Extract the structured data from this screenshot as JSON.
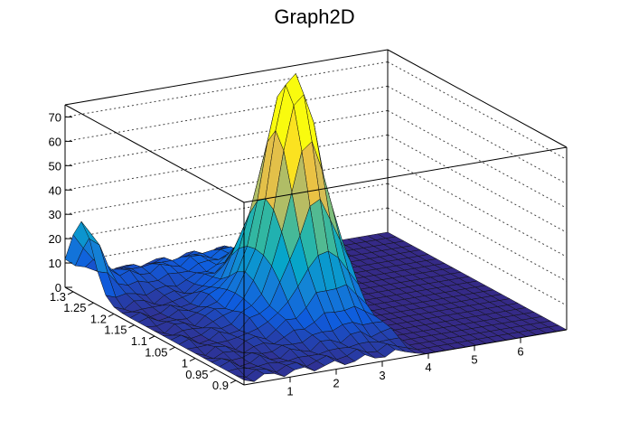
{
  "chart_data": {
    "type": "surface3d",
    "title": "Graph2D",
    "xlabel": "",
    "ylabel": "",
    "zlabel": "",
    "xlim": [
      0,
      7
    ],
    "ylim": [
      0.88,
      1.32
    ],
    "zlim": [
      0,
      75
    ],
    "x_ticks": [
      "1",
      "2",
      "3",
      "4",
      "5",
      "6"
    ],
    "y_ticks": [
      "1.3",
      "1.25",
      "1.2",
      "1.15",
      "1.1",
      "1.05",
      "1",
      "0.95",
      "0.9"
    ],
    "z_ticks": [
      "0",
      "10",
      "20",
      "30",
      "40",
      "50",
      "60",
      "70"
    ],
    "z_gridlines": true,
    "palette": [
      "#352a87",
      "#0f5cdd",
      "#1481d6",
      "#06a4ca",
      "#2eb7a4",
      "#87bf77",
      "#d1bb59",
      "#fec832",
      "#f9fb0e"
    ],
    "surface": {
      "peak_x": 3.0,
      "peak_y": 1.1,
      "peak_z": 70,
      "secondary_peak": {
        "x": 0.0,
        "y": 1.28,
        "z": 23
      },
      "baseline_z": 0,
      "cutoff_x": 3.9
    }
  }
}
